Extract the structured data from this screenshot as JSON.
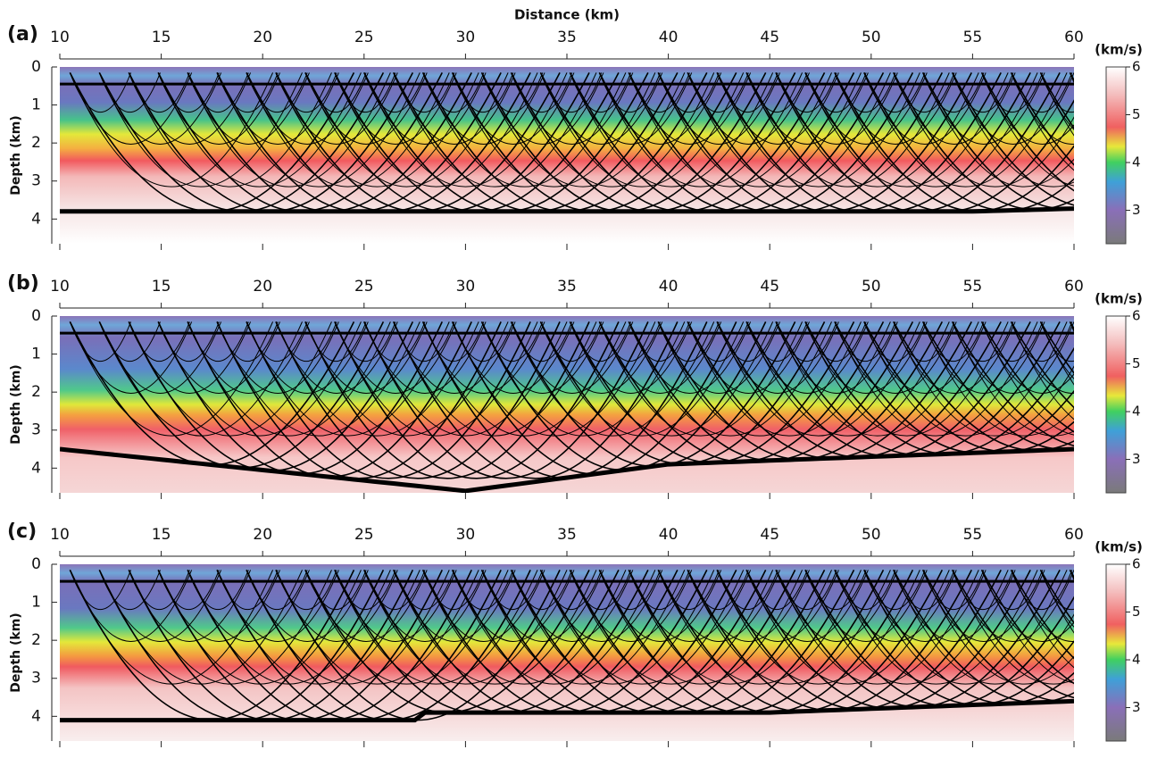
{
  "chart_data": [
    {
      "type": "heatmap",
      "panel_label": "(a)",
      "x_label": "Distance (km)",
      "y_label": "Depth (km)",
      "xlim": [
        10,
        60
      ],
      "xticks": [
        10,
        15,
        20,
        25,
        30,
        35,
        40,
        45,
        50,
        55,
        60
      ],
      "ylim": [
        0,
        4.65
      ],
      "yticks": [
        0,
        1,
        2,
        3,
        4
      ],
      "y_inverted": true,
      "colorbar": {
        "label": "(km/s)",
        "lim": [
          2.3,
          6
        ],
        "ticks": [
          3,
          4,
          5,
          6
        ]
      }
    },
    {
      "type": "heatmap",
      "panel_label": "(b)",
      "y_label": "Depth (km)",
      "xlim": [
        10,
        60
      ],
      "xticks": [
        10,
        15,
        20,
        25,
        30,
        35,
        40,
        45,
        50,
        55,
        60
      ],
      "ylim": [
        0,
        4.65
      ],
      "yticks": [
        0,
        1,
        2,
        3,
        4
      ],
      "y_inverted": true,
      "colorbar": {
        "label": "(km/s)",
        "lim": [
          2.3,
          6
        ],
        "ticks": [
          3,
          4,
          5,
          6
        ]
      }
    },
    {
      "type": "heatmap",
      "panel_label": "(c)",
      "y_label": "Depth (km)",
      "xlim": [
        10,
        60
      ],
      "xticks": [
        10,
        15,
        20,
        25,
        30,
        35,
        40,
        45,
        50,
        55,
        60
      ],
      "ylim": [
        0,
        4.65
      ],
      "yticks": [
        0,
        1,
        2,
        3,
        4
      ],
      "y_inverted": true,
      "colorbar": {
        "label": "(km/s)",
        "lim": [
          2.3,
          6
        ],
        "ticks": [
          3,
          4,
          5,
          6
        ]
      }
    }
  ]
}
